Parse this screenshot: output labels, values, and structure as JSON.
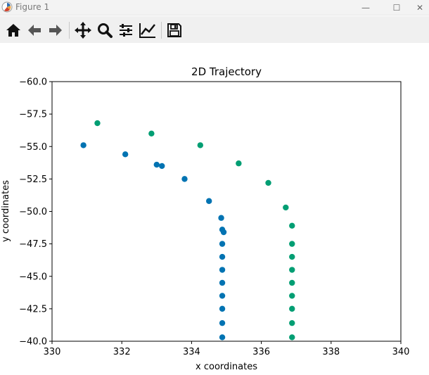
{
  "window": {
    "title": "Figure 1",
    "minimize_symbol": "—",
    "maximize_symbol": "☐",
    "close_symbol": "✕"
  },
  "toolbar": {
    "buttons": [
      {
        "name": "home",
        "icon": "home-icon"
      },
      {
        "name": "back",
        "icon": "left-arrow-icon"
      },
      {
        "name": "forward",
        "icon": "right-arrow-icon"
      },
      {
        "name": "pan",
        "icon": "move-icon"
      },
      {
        "name": "zoom",
        "icon": "magnifier-icon"
      },
      {
        "name": "subplots",
        "icon": "sliders-icon"
      },
      {
        "name": "customize",
        "icon": "line-chart-icon"
      },
      {
        "name": "save",
        "icon": "floppy-disk-icon"
      }
    ]
  },
  "chart_data": {
    "type": "scatter",
    "title": "2D Trajectory",
    "xlabel": "x coordinates",
    "ylabel": "y coordinates",
    "xlim": [
      330,
      340
    ],
    "ylim": [
      -60,
      -40
    ],
    "y_inverted": true,
    "x_ticks": [
      "330",
      "332",
      "334",
      "336",
      "338",
      "340"
    ],
    "y_ticks": [
      "−60.0",
      "−57.5",
      "−55.0",
      "−52.5",
      "−50.0",
      "−47.5",
      "−45.0",
      "−42.5",
      "−40.0"
    ],
    "grid": false,
    "series": [
      {
        "color": "#0173b2",
        "points": [
          [
            330.9,
            -55.1
          ],
          [
            332.1,
            -54.4
          ],
          [
            333.0,
            -53.6
          ],
          [
            333.15,
            -53.5
          ],
          [
            333.8,
            -52.5
          ],
          [
            334.5,
            -50.8
          ],
          [
            334.85,
            -49.5
          ],
          [
            334.88,
            -48.6
          ],
          [
            334.92,
            -48.4
          ],
          [
            334.88,
            -47.5
          ],
          [
            334.88,
            -46.5
          ],
          [
            334.88,
            -45.5
          ],
          [
            334.88,
            -44.5
          ],
          [
            334.88,
            -43.5
          ],
          [
            334.88,
            -42.5
          ],
          [
            334.88,
            -41.4
          ],
          [
            334.88,
            -40.3
          ]
        ]
      },
      {
        "color": "#029e73",
        "points": [
          [
            331.3,
            -56.8
          ],
          [
            332.85,
            -56.0
          ],
          [
            334.25,
            -55.1
          ],
          [
            335.35,
            -53.7
          ],
          [
            336.2,
            -52.2
          ],
          [
            336.7,
            -50.3
          ],
          [
            336.88,
            -48.9
          ],
          [
            336.88,
            -47.5
          ],
          [
            336.88,
            -46.5
          ],
          [
            336.88,
            -45.5
          ],
          [
            336.88,
            -44.5
          ],
          [
            336.88,
            -43.5
          ],
          [
            336.88,
            -42.5
          ],
          [
            336.88,
            -41.4
          ],
          [
            336.88,
            -40.3
          ]
        ]
      }
    ]
  }
}
